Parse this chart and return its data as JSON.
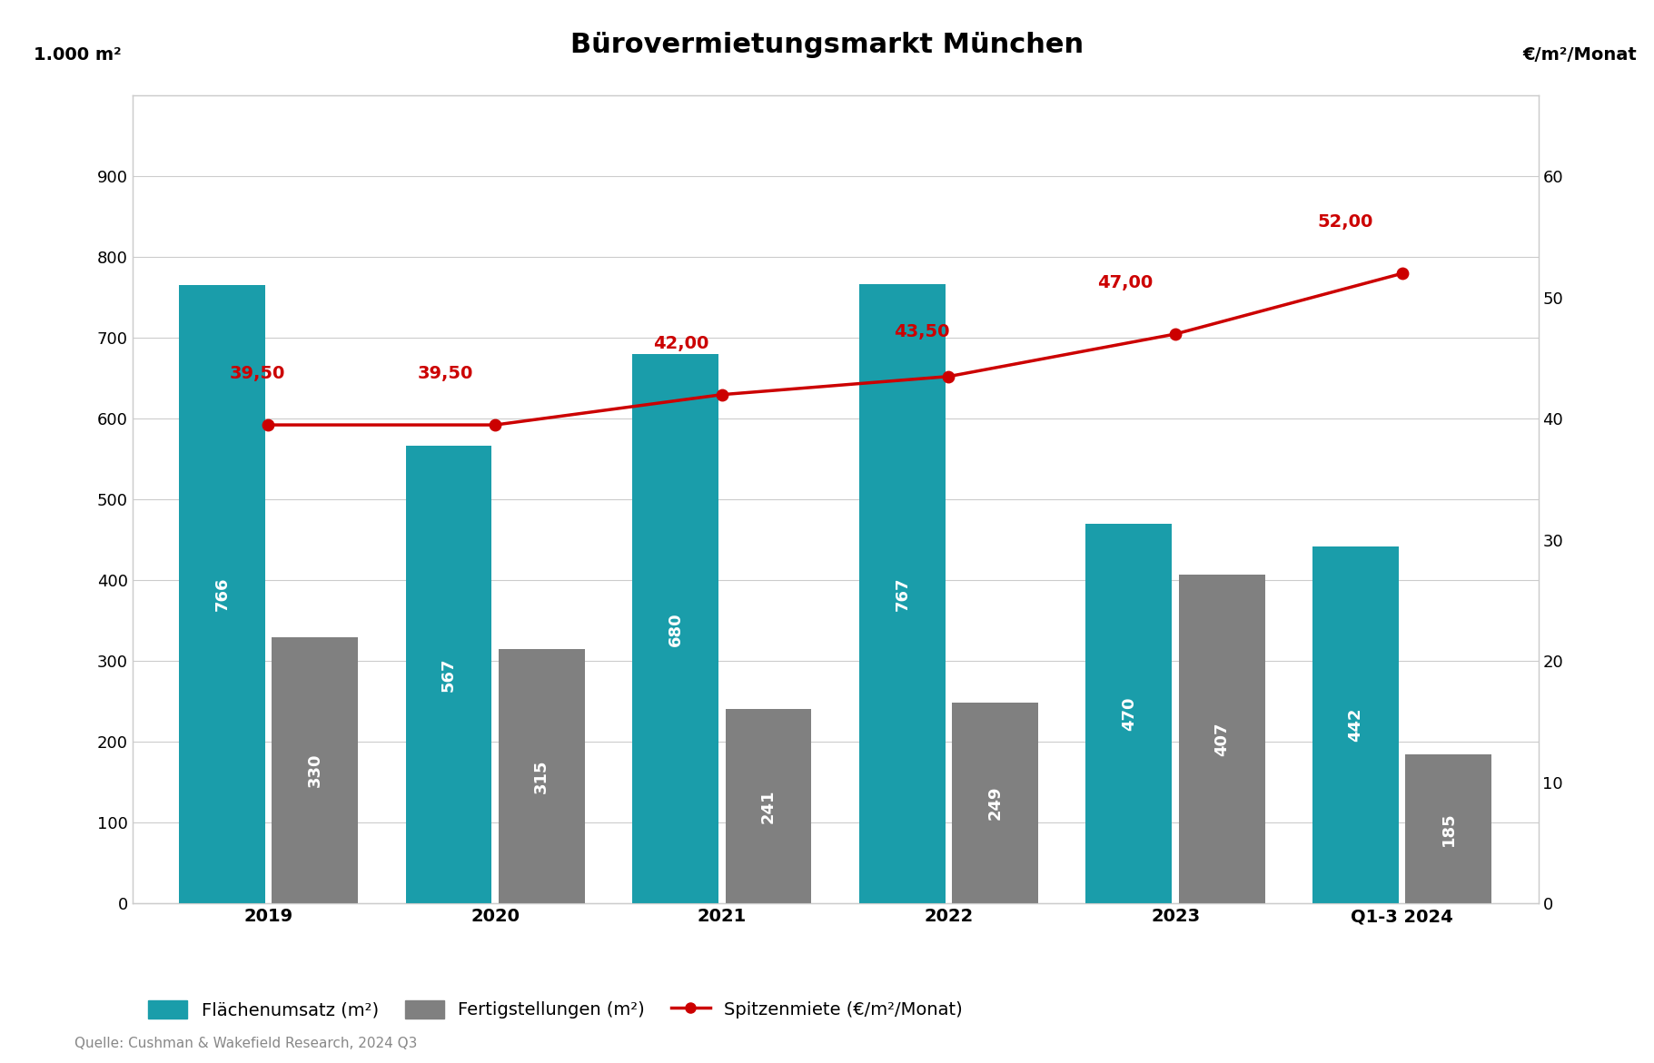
{
  "title": "Bürovermietungsmarkt München",
  "categories": [
    "2019",
    "2020",
    "2021",
    "2022",
    "2023",
    "Q1-3 2024"
  ],
  "flaeche": [
    766,
    567,
    680,
    767,
    470,
    442
  ],
  "fertig": [
    330,
    315,
    241,
    249,
    407,
    185
  ],
  "spitze": [
    39.5,
    39.5,
    42.0,
    43.5,
    47.0,
    52.0
  ],
  "flaeche_color": "#1a9daa",
  "fertig_color": "#808080",
  "spitze_color": "#cc0000",
  "bar_text_color": "#ffffff",
  "ylabel_left": "1.000 m²",
  "ylabel_right": "€/m²/Monat",
  "ylim_left": [
    0,
    1000
  ],
  "ylim_right": [
    0,
    66.67
  ],
  "yticks_left": [
    0,
    100,
    200,
    300,
    400,
    500,
    600,
    700,
    800,
    900
  ],
  "yticks_right": [
    0,
    10,
    20,
    30,
    40,
    50,
    60
  ],
  "legend_flaeche": "Flächenumsatz (m²)",
  "legend_fertig": "Fertigstellungen (m²)",
  "legend_spitze": "Spitzenmiete (€/m²/Monat)",
  "source": "Quelle: Cushman & Wakefield Research, 2024 Q3",
  "background_color": "#ffffff",
  "bar_width": 0.38,
  "bar_gap": 0.03,
  "title_fontsize": 22,
  "axis_label_fontsize": 14,
  "tick_fontsize": 13,
  "bar_text_fontsize": 13,
  "line_annotation_fontsize": 14,
  "legend_fontsize": 14,
  "source_fontsize": 11,
  "spitze_labels": [
    "39,50",
    "39,50",
    "42,00",
    "43,50",
    "47,00",
    "52,00"
  ],
  "spitze_annot_dx": [
    -0.05,
    -0.22,
    -0.18,
    -0.12,
    -0.22,
    -0.25
  ],
  "spitze_annot_dy": [
    3.5,
    3.5,
    3.5,
    3.0,
    3.5,
    3.5
  ]
}
